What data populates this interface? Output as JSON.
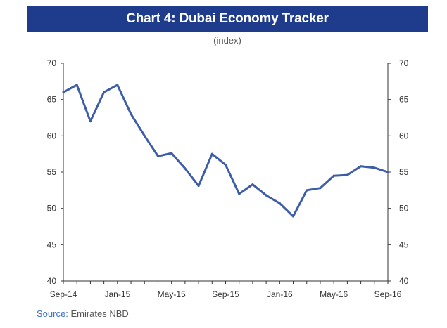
{
  "title": "Chart 4: Dubai Economy Tracker",
  "subtitle": "(index)",
  "source_label": "Source:",
  "source_text": "Emirates NBD",
  "colors": {
    "title_bg": "#1f3c8c",
    "line": "#3d5da8",
    "axis": "#333333",
    "source_label": "#3b6fc4"
  },
  "chart_data": {
    "type": "line",
    "title": "Chart 4: Dubai Economy Tracker",
    "subtitle": "(index)",
    "xlabel": "",
    "ylabel": "",
    "ylim": [
      40,
      70
    ],
    "yticks": [
      40,
      45,
      50,
      55,
      60,
      65,
      70
    ],
    "secondary_y_axis": true,
    "grid": false,
    "x": [
      "Sep-14",
      "Oct-14",
      "Nov-14",
      "Dec-14",
      "Jan-15",
      "Feb-15",
      "Mar-15",
      "Apr-15",
      "May-15",
      "Jun-15",
      "Jul-15",
      "Aug-15",
      "Sep-15",
      "Oct-15",
      "Nov-15",
      "Dec-15",
      "Jan-16",
      "Feb-16",
      "Mar-16",
      "Apr-16",
      "May-16",
      "Jun-16",
      "Jul-16",
      "Aug-16",
      "Sep-16"
    ],
    "xtick_labels": [
      "Sep-14",
      "Jan-15",
      "May-15",
      "Sep-15",
      "Jan-16",
      "May-16",
      "Sep-16"
    ],
    "series": [
      {
        "values": [
          66.0,
          67.0,
          62.0,
          66.0,
          67.0,
          63.0,
          60.0,
          57.2,
          57.6,
          55.5,
          53.1,
          57.5,
          56.0,
          52.0,
          53.3,
          51.8,
          50.7,
          48.9,
          52.5,
          52.8,
          54.5,
          54.6,
          55.8,
          55.6,
          55.0
        ]
      }
    ]
  }
}
